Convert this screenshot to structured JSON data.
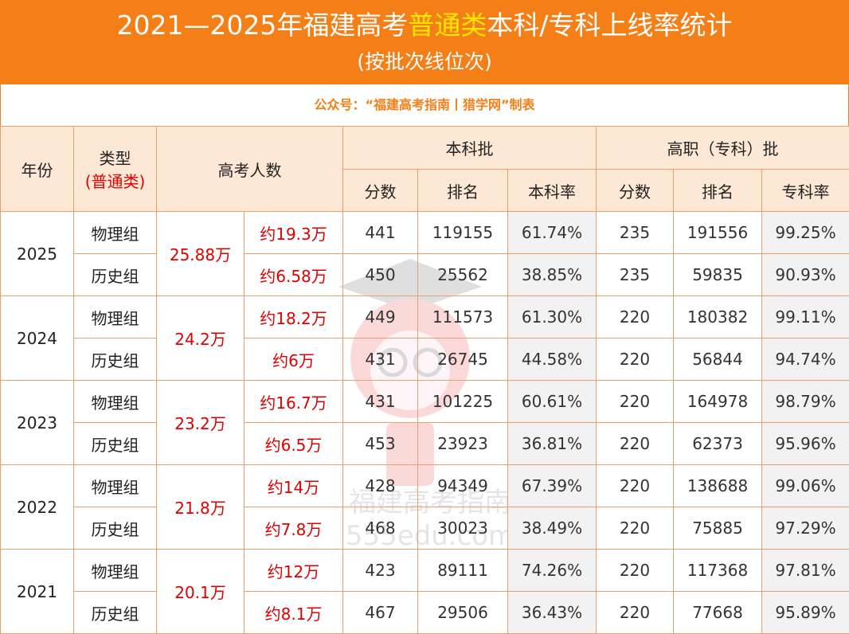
{
  "header": {
    "title_pre": "2021—2025年福建高考",
    "title_hl": "普通类",
    "title_post": "本科/专科上线率统计",
    "subtitle": "(按批次线位次)"
  },
  "credit": "公众号：“福建高考指南丨猎学网”制表",
  "table": {
    "col_year": "年份",
    "col_type": "类型",
    "col_type_sub": "(普通类)",
    "col_examinees": "高考人数",
    "group_bachelor": "本科批",
    "group_vocational": "高职（专科）批",
    "sub_score": "分数",
    "sub_rank": "排名",
    "sub_bachelor_rate": "本科率",
    "sub_vocational_rate": "专科率",
    "rows": [
      {
        "year": "2025",
        "total": "25.88万",
        "groups": [
          {
            "type": "物理组",
            "count": "约19.3万",
            "b_score": "441",
            "b_rank": "119155",
            "b_rate": "61.74%",
            "v_score": "235",
            "v_rank": "191556",
            "v_rate": "99.25%"
          },
          {
            "type": "历史组",
            "count": "约6.58万",
            "b_score": "450",
            "b_rank": "25562",
            "b_rate": "38.85%",
            "v_score": "235",
            "v_rank": "59835",
            "v_rate": "90.93%"
          }
        ]
      },
      {
        "year": "2024",
        "total": "24.2万",
        "groups": [
          {
            "type": "物理组",
            "count": "约18.2万",
            "b_score": "449",
            "b_rank": "111573",
            "b_rate": "61.30%",
            "v_score": "220",
            "v_rank": "180382",
            "v_rate": "99.11%"
          },
          {
            "type": "历史组",
            "count": "约6万",
            "b_score": "431",
            "b_rank": "26745",
            "b_rate": "44.58%",
            "v_score": "220",
            "v_rank": "56844",
            "v_rate": "94.74%"
          }
        ]
      },
      {
        "year": "2023",
        "total": "23.2万",
        "groups": [
          {
            "type": "物理组",
            "count": "约16.7万",
            "b_score": "431",
            "b_rank": "101225",
            "b_rate": "60.61%",
            "v_score": "220",
            "v_rank": "164978",
            "v_rate": "98.79%"
          },
          {
            "type": "历史组",
            "count": "约6.5万",
            "b_score": "453",
            "b_rank": "23923",
            "b_rate": "36.81%",
            "v_score": "220",
            "v_rank": "62373",
            "v_rate": "95.96%"
          }
        ]
      },
      {
        "year": "2022",
        "total": "21.8万",
        "groups": [
          {
            "type": "物理组",
            "count": "约14万",
            "b_score": "428",
            "b_rank": "94349",
            "b_rate": "67.39%",
            "v_score": "220",
            "v_rank": "138688",
            "v_rate": "99.06%"
          },
          {
            "type": "历史组",
            "count": "约7.8万",
            "b_score": "468",
            "b_rank": "30023",
            "b_rate": "38.49%",
            "v_score": "220",
            "v_rank": "75885",
            "v_rate": "97.29%"
          }
        ]
      },
      {
        "year": "2021",
        "total": "20.1万",
        "groups": [
          {
            "type": "物理组",
            "count": "约12万",
            "b_score": "423",
            "b_rank": "89111",
            "b_rate": "74.26%",
            "v_score": "220",
            "v_rank": "117368",
            "v_rate": "97.81%"
          },
          {
            "type": "历史组",
            "count": "约8.1万",
            "b_score": "467",
            "b_rank": "29506",
            "b_rate": "36.43%",
            "v_score": "220",
            "v_rank": "77668",
            "v_rate": "95.89%"
          }
        ]
      }
    ]
  },
  "watermark": {
    "line1": "福建高考指南",
    "line2": "555edu.com"
  },
  "colors": {
    "header_bg": "#f57f17",
    "title_highlight": "#ffe600",
    "header_cell_bg": "#fde7d5",
    "red_text": "#e00000"
  }
}
